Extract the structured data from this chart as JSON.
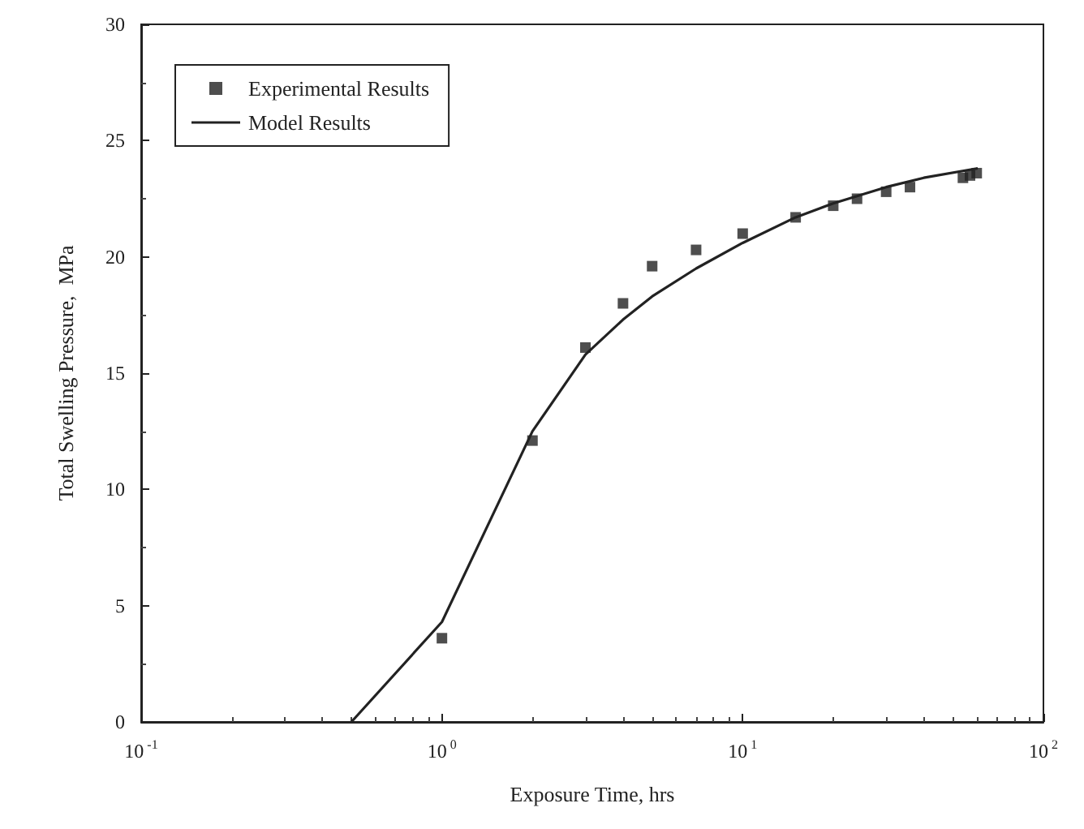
{
  "chart_data": {
    "type": "scatter",
    "xlabel": "Exposure Time, hrs",
    "ylabel": "Total Swelling Pressure,  MPa",
    "log": "x",
    "grid": false,
    "legend": "top left",
    "xlim": [
      0.1,
      100
    ],
    "xticks": [
      {
        "value": 0.1,
        "label": "10$^{-1}$"
      },
      {
        "value": 1,
        "label": "10$^{0}$"
      },
      {
        "value": 10,
        "label": "10$^{1}$"
      },
      {
        "value": 100,
        "label": "10$^{2}$"
      }
    ],
    "ylim": [
      0,
      30
    ],
    "yticks": [
      0,
      5,
      10,
      15,
      20,
      25,
      30
    ],
    "series": [
      {
        "name": "Experimental Results",
        "marker": "square",
        "color": "#222222",
        "x": [
          1,
          2,
          3,
          4,
          5,
          7,
          10,
          15,
          20,
          24,
          30,
          36,
          54,
          57,
          60
        ],
        "values": [
          3.6,
          12.1,
          16.1,
          18,
          19.6,
          20.3,
          21,
          21.7,
          22.2,
          22.5,
          22.8,
          23,
          23.4,
          23.5,
          23.6
        ]
      },
      {
        "name": "Model Results",
        "type": "line",
        "marker": "none",
        "line_style": "solid",
        "color": "#222222",
        "x": [
          0.5,
          1,
          2,
          3,
          4,
          5,
          7,
          10,
          15,
          20,
          30,
          40,
          60
        ],
        "values": [
          0,
          4.3,
          12.5,
          15.8,
          17.3,
          18.3,
          19.5,
          20.6,
          21.7,
          22.3,
          23,
          23.4,
          23.8
        ]
      }
    ]
  }
}
